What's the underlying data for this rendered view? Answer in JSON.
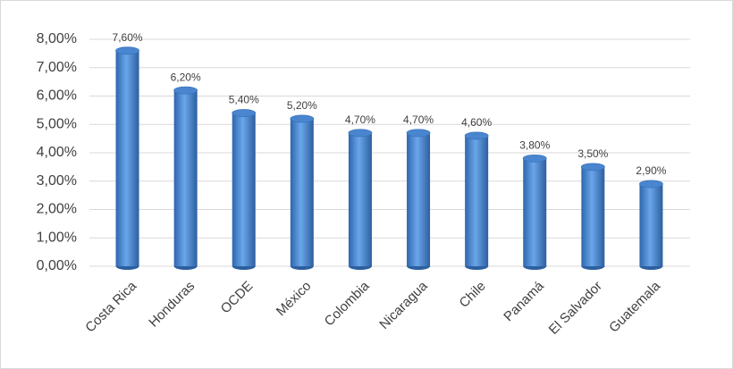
{
  "chart_data": {
    "type": "bar",
    "categories": [
      "Costa Rica",
      "Honduras",
      "OCDE",
      "México",
      "Colombia",
      "Nicaragua",
      "Chile",
      "Panamá",
      "El Salvador",
      "Guatemala"
    ],
    "values": [
      7.6,
      6.2,
      5.4,
      5.2,
      4.7,
      4.7,
      4.6,
      3.8,
      3.5,
      2.9
    ],
    "value_labels": [
      "7,60%",
      "6,20%",
      "5,40%",
      "5,20%",
      "4,70%",
      "4,70%",
      "4,60%",
      "3,80%",
      "3,50%",
      "2,90%"
    ],
    "color": "#4a86cf",
    "ylim": [
      0,
      8
    ],
    "yticks": [
      {
        "value": 0,
        "label": "0,00%"
      },
      {
        "value": 1,
        "label": "1,00%"
      },
      {
        "value": 2,
        "label": "2,00%"
      },
      {
        "value": 3,
        "label": "3,00%"
      },
      {
        "value": 4,
        "label": "4,00%"
      },
      {
        "value": 5,
        "label": "5,00%"
      },
      {
        "value": 6,
        "label": "6,00%"
      },
      {
        "value": 7,
        "label": "7,00%"
      },
      {
        "value": 8,
        "label": "8,00%"
      }
    ],
    "grid": true
  }
}
